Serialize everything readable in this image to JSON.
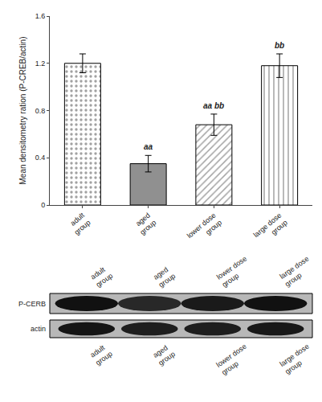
{
  "chart_data": [
    {
      "type": "bar",
      "categories": [
        "adult\ngroup",
        "aged\ngroup",
        "lower dose\ngroup",
        "large dose\ngroup"
      ],
      "values": [
        1.2,
        0.35,
        0.68,
        1.18
      ],
      "errors": [
        0.08,
        0.07,
        0.09,
        0.1
      ],
      "colors": [
        "white",
        "#909090",
        "white",
        "white"
      ],
      "annotations": [
        null,
        "aa",
        "aa bb",
        "bb"
      ],
      "ylabel": "Mean densitometry ration (P-CREB/actin)",
      "ylim": [
        0,
        1.6
      ],
      "yticks": [
        0,
        0.4,
        0.8,
        1.2,
        1.6
      ],
      "grid": false
    },
    {
      "type": "blot",
      "categories": [
        "adult\ngroup",
        "aged\ngroup",
        "lower dose\ngroup",
        "large dose\ngroup"
      ],
      "color": "#b8b8b8",
      "series": [
        {
          "name": "P-CERB",
          "colors": [
            "#111111",
            "#282828",
            "#1a1a1a",
            "#111111"
          ]
        },
        {
          "name": "actin",
          "colors": [
            "#151515",
            "#1e1e1e",
            "#1e1e1e",
            "#181818"
          ]
        }
      ]
    }
  ]
}
